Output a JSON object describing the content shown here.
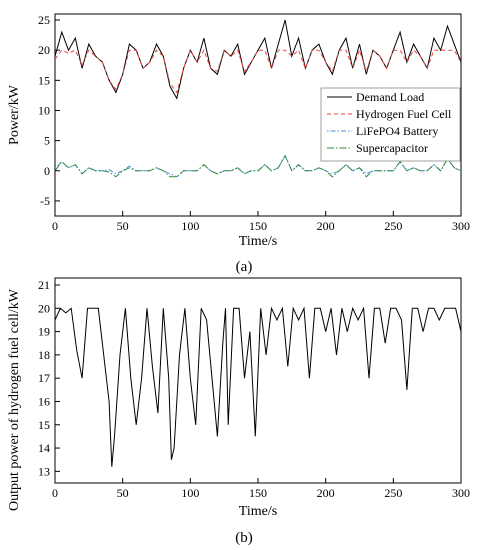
{
  "chart_data": [
    {
      "panel_label": "(a)",
      "type": "line",
      "xlabel": "Time/s",
      "ylabel": "Power/kW",
      "xlim": [
        0,
        300
      ],
      "ylim": [
        -7.5,
        26
      ],
      "xticks": [
        0,
        50,
        100,
        150,
        200,
        250,
        300
      ],
      "yticks": [
        -5,
        0,
        5,
        10,
        15,
        20,
        25
      ],
      "grid": false,
      "legend_position": "right",
      "x": [
        0,
        5,
        10,
        15,
        20,
        25,
        30,
        35,
        40,
        45,
        50,
        55,
        60,
        65,
        70,
        75,
        80,
        85,
        90,
        95,
        100,
        105,
        110,
        115,
        120,
        125,
        130,
        135,
        140,
        145,
        150,
        155,
        160,
        165,
        170,
        175,
        180,
        185,
        190,
        195,
        200,
        205,
        210,
        215,
        220,
        225,
        230,
        235,
        240,
        245,
        250,
        255,
        260,
        265,
        270,
        275,
        280,
        285,
        290,
        295,
        300
      ],
      "series": [
        {
          "name": "Demand Load",
          "color": "#000000",
          "dash": "",
          "values": [
            19,
            23,
            20,
            22,
            17,
            21,
            19,
            18,
            15,
            13,
            16,
            21,
            20,
            17,
            18,
            21,
            19,
            14,
            12,
            17,
            20,
            18,
            22,
            17,
            16,
            20,
            19,
            21,
            16,
            18,
            20,
            22,
            17,
            21,
            25,
            19,
            22,
            17,
            20,
            21,
            18,
            16,
            20,
            22,
            17,
            21,
            16,
            20,
            19,
            17,
            20,
            23,
            18,
            21,
            19,
            17,
            22,
            20,
            24,
            21,
            18
          ]
        },
        {
          "name": "Hydrogen Fuel Cell",
          "color": "#e8453c",
          "dash": "4,3",
          "values": [
            18.5,
            20,
            19.5,
            20,
            17.5,
            20,
            19,
            18,
            15,
            13.5,
            16,
            20,
            20,
            17,
            18,
            20,
            19,
            14.5,
            13,
            17,
            20,
            18,
            20,
            17,
            16.5,
            20,
            19,
            20,
            16.5,
            18,
            20,
            20,
            17,
            20,
            20,
            19,
            20,
            17,
            20,
            20,
            18,
            16.5,
            20,
            20,
            17,
            20,
            16.5,
            20,
            19,
            17,
            20,
            20,
            18,
            20,
            19,
            17,
            20,
            20,
            20,
            20,
            18
          ]
        },
        {
          "name": "LiFePO4 Battery",
          "color": "#4a90d9",
          "dash": "1.5,2,5,2",
          "values": [
            0.5,
            1.5,
            0.5,
            1,
            -0.5,
            0.5,
            0,
            0,
            0.2,
            -0.5,
            0,
            0.8,
            0,
            0,
            0,
            0.5,
            0,
            -0.5,
            -1,
            0,
            0,
            0,
            1,
            0,
            -0.5,
            0,
            0,
            0.5,
            -0.5,
            0,
            0,
            1,
            0,
            0.5,
            2.5,
            0,
            1,
            0,
            0,
            0.5,
            0,
            -0.5,
            0,
            1,
            0,
            0.5,
            -0.5,
            0,
            0,
            0,
            0,
            1.5,
            0,
            0.5,
            0,
            0,
            1,
            0,
            2,
            0.5,
            0
          ]
        },
        {
          "name": "Supercapacitor",
          "color": "#2e8b3e",
          "dash": "7,2,1.5,2",
          "values": [
            0,
            1.5,
            0.5,
            1,
            -0.5,
            0.5,
            0,
            0,
            -0.2,
            -1,
            0,
            0.5,
            0,
            0,
            0,
            0.5,
            0,
            -1,
            -1,
            0,
            0,
            0,
            1,
            0,
            -0.5,
            0,
            0,
            0.5,
            -0.5,
            0,
            0,
            1,
            0,
            0.5,
            2.5,
            0,
            1,
            0,
            0,
            0.5,
            0,
            -1,
            0,
            1,
            0,
            0.5,
            -1,
            0,
            0,
            0,
            0,
            1.5,
            0,
            0.5,
            0,
            0,
            1,
            0,
            2,
            0.5,
            0
          ]
        }
      ]
    },
    {
      "panel_label": "(b)",
      "type": "line",
      "xlabel": "Time/s",
      "ylabel": "Output power of hydrogen fuel cell/kW",
      "xlim": [
        0,
        300
      ],
      "ylim": [
        12.5,
        21.3
      ],
      "xticks": [
        0,
        50,
        100,
        150,
        200,
        250,
        300
      ],
      "yticks": [
        13,
        14,
        15,
        16,
        17,
        18,
        19,
        20,
        21
      ],
      "grid": false,
      "x": [
        0,
        4,
        8,
        12,
        16,
        20,
        24,
        28,
        32,
        36,
        40,
        42,
        44,
        48,
        52,
        56,
        60,
        64,
        68,
        72,
        76,
        80,
        84,
        86,
        88,
        92,
        96,
        100,
        104,
        108,
        112,
        116,
        120,
        124,
        126,
        128,
        132,
        136,
        140,
        144,
        148,
        152,
        156,
        160,
        164,
        168,
        172,
        176,
        180,
        184,
        188,
        192,
        196,
        200,
        204,
        208,
        212,
        216,
        220,
        224,
        228,
        232,
        236,
        240,
        244,
        248,
        252,
        256,
        260,
        264,
        268,
        272,
        276,
        280,
        284,
        288,
        292,
        296,
        300
      ],
      "series": [
        {
          "name": "",
          "color": "#000000",
          "values": [
            19.5,
            20,
            19.8,
            20,
            18.2,
            17,
            20,
            20,
            20,
            18,
            16,
            13.2,
            14.5,
            18,
            20,
            17,
            15,
            17,
            20,
            17.5,
            15.5,
            20,
            17,
            13.5,
            14,
            18,
            20,
            17,
            15,
            20,
            19.5,
            17,
            14.5,
            18.5,
            20,
            15,
            20,
            20,
            17,
            19,
            14.5,
            20,
            18,
            20,
            19.5,
            20,
            17.5,
            20,
            19.5,
            20,
            17,
            20,
            20,
            19,
            20,
            18,
            20,
            19,
            20,
            19.5,
            20,
            17,
            20,
            20,
            18.5,
            20,
            20,
            19.5,
            16.5,
            20,
            20,
            19,
            20,
            20,
            19.5,
            20,
            20,
            20,
            19
          ]
        }
      ]
    }
  ]
}
